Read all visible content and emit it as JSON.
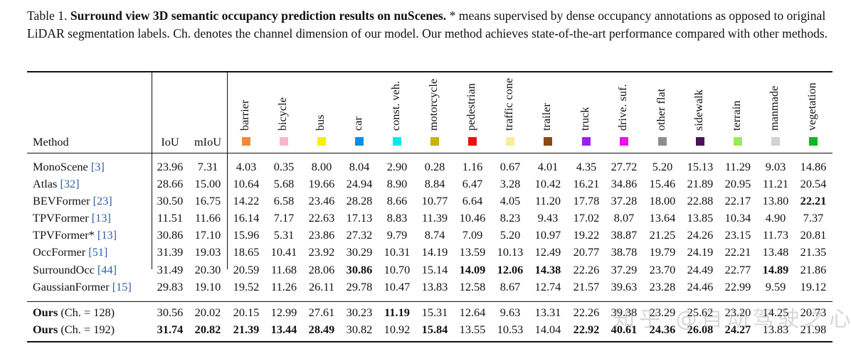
{
  "caption": {
    "label": "Table 1.",
    "title": "Surround view 3D semantic occupancy prediction results on nuScenes.",
    "body": "* means supervised by dense occupancy annotations as opposed to original LiDAR segmentation labels. Ch. denotes the channel dimension of our model. Our method achieves state-of-the-art performance compared with other methods."
  },
  "header": {
    "method": "Method",
    "iou": "IoU",
    "miou": "mIoU"
  },
  "classes": [
    {
      "name": "barrier",
      "color": "#f08a3c"
    },
    {
      "name": "bicycle",
      "color": "#f7b8c8"
    },
    {
      "name": "bus",
      "color": "#f4f000"
    },
    {
      "name": "car",
      "color": "#0b8ee8"
    },
    {
      "name": "const. veh.",
      "color": "#00ecec"
    },
    {
      "name": "motorcycle",
      "color": "#c8b400"
    },
    {
      "name": "pedestrian",
      "color": "#ee1010"
    },
    {
      "name": "traffic cone",
      "color": "#f8ec9c"
    },
    {
      "name": "trailer",
      "color": "#8a4a12"
    },
    {
      "name": "truck",
      "color": "#9a20ec"
    },
    {
      "name": "drive. suf.",
      "color": "#f010e8"
    },
    {
      "name": "other flat",
      "color": "#8e8e8e"
    },
    {
      "name": "sidewalk",
      "color": "#4a1458"
    },
    {
      "name": "terrain",
      "color": "#98ec54"
    },
    {
      "name": "manmade",
      "color": "#d2d2d2"
    },
    {
      "name": "vegetation",
      "color": "#10b820"
    }
  ],
  "rows": [
    {
      "method": "MonoScene",
      "ref": "[3]",
      "values": [
        "23.96",
        "7.31",
        "4.03",
        "0.35",
        "8.00",
        "8.04",
        "2.90",
        "0.28",
        "1.16",
        "0.67",
        "4.01",
        "4.35",
        "27.72",
        "5.20",
        "15.13",
        "11.29",
        "9.03",
        "14.86"
      ],
      "bold": []
    },
    {
      "method": "Atlas",
      "ref": "[32]",
      "values": [
        "28.66",
        "15.00",
        "10.64",
        "5.68",
        "19.66",
        "24.94",
        "8.90",
        "8.84",
        "6.47",
        "3.28",
        "10.42",
        "16.21",
        "34.86",
        "15.46",
        "21.89",
        "20.95",
        "11.21",
        "20.54"
      ],
      "bold": []
    },
    {
      "method": "BEVFormer",
      "ref": "[23]",
      "values": [
        "30.50",
        "16.75",
        "14.22",
        "6.58",
        "23.46",
        "28.28",
        "8.66",
        "10.77",
        "6.64",
        "4.05",
        "11.20",
        "17.78",
        "37.28",
        "18.00",
        "22.88",
        "22.17",
        "13.80",
        "22.21"
      ],
      "bold": [
        17
      ]
    },
    {
      "method": "TPVFormer",
      "ref": "[13]",
      "values": [
        "11.51",
        "11.66",
        "16.14",
        "7.17",
        "22.63",
        "17.13",
        "8.83",
        "11.39",
        "10.46",
        "8.23",
        "9.43",
        "17.02",
        "8.07",
        "13.64",
        "13.85",
        "10.34",
        "4.90",
        "7.37"
      ],
      "bold": []
    },
    {
      "method": "TPVFormer*",
      "ref": "[13]",
      "values": [
        "30.86",
        "17.10",
        "15.96",
        "5.31",
        "23.86",
        "27.32",
        "9.79",
        "8.74",
        "7.09",
        "5.20",
        "10.97",
        "19.22",
        "38.87",
        "21.25",
        "24.26",
        "23.15",
        "11.73",
        "20.81"
      ],
      "bold": []
    },
    {
      "method": "OccFormer",
      "ref": "[51]",
      "values": [
        "31.39",
        "19.03",
        "18.65",
        "10.41",
        "23.92",
        "30.29",
        "10.31",
        "14.19",
        "13.59",
        "10.13",
        "12.49",
        "20.77",
        "38.78",
        "19.79",
        "24.19",
        "22.21",
        "13.48",
        "21.35"
      ],
      "bold": []
    },
    {
      "method": "SurroundOcc",
      "ref": "[44]",
      "values": [
        "31.49",
        "20.30",
        "20.59",
        "11.68",
        "28.06",
        "30.86",
        "10.70",
        "15.14",
        "14.09",
        "12.06",
        "14.38",
        "22.26",
        "37.29",
        "23.70",
        "24.49",
        "22.77",
        "14.89",
        "21.86"
      ],
      "bold": [
        5,
        8,
        9,
        10,
        16
      ]
    },
    {
      "method": "GaussianFormer",
      "ref": "[15]",
      "values": [
        "29.83",
        "19.10",
        "19.52",
        "11.26",
        "26.11",
        "29.78",
        "10.47",
        "13.83",
        "12.58",
        "8.67",
        "12.74",
        "21.57",
        "39.63",
        "23.28",
        "24.46",
        "22.99",
        "9.59",
        "19.12"
      ],
      "bold": []
    },
    {
      "method": "Ours",
      "suffix": "(Ch. = 128)",
      "values": [
        "30.56",
        "20.02",
        "20.15",
        "12.99",
        "27.61",
        "30.23",
        "11.19",
        "15.31",
        "12.64",
        "9.63",
        "13.31",
        "22.26",
        "39.38",
        "23.29",
        "25.62",
        "23.20",
        "14.25",
        "20.73"
      ],
      "bold": [
        6
      ]
    },
    {
      "method": "Ours",
      "suffix": "(Ch. = 192)",
      "values": [
        "31.74",
        "20.82",
        "21.39",
        "13.44",
        "28.49",
        "30.82",
        "10.92",
        "15.84",
        "13.55",
        "10.53",
        "14.04",
        "22.92",
        "40.61",
        "24.36",
        "26.08",
        "24.27",
        "13.83",
        "21.98"
      ],
      "bold": [
        0,
        1,
        2,
        3,
        4,
        7,
        11,
        12,
        13,
        14,
        15
      ]
    }
  ],
  "watermark": "知乎 @自动驾驶之心"
}
